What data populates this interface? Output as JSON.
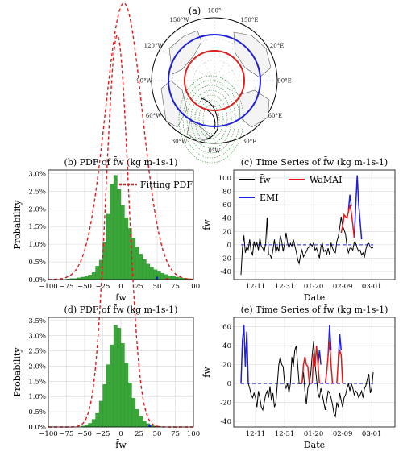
{
  "panel_a": {
    "label": "(a)",
    "lon_labels": [
      "180°",
      "150°E",
      "120°E",
      "90°E",
      "60°E",
      "30°E",
      "0°W",
      "30°W",
      "60°W",
      "90°W",
      "120°W",
      "150°W"
    ],
    "circle_colors": {
      "outer": "#1f1fdd",
      "inner": "#dd1f1f"
    },
    "icon": "polar-stereographic-map"
  },
  "colors": {
    "hist": "#3aa63a",
    "hist_edge": "#2d8f2d",
    "fit": "#e31a1c",
    "fw": "#000000",
    "wamai": "#e31a1c",
    "emi": "#1f1fdd",
    "zero": "#1f1fdd",
    "grid": "#d8d8d8"
  },
  "chart_data": [
    {
      "id": "b",
      "type": "bar",
      "title": "(b) PDF of f̄w (kg m-1s-1)",
      "xlabel": "f̄w",
      "ylabel": "Probability",
      "xlim": [
        -100,
        100
      ],
      "ylim": [
        0,
        0.031
      ],
      "xticks": [
        "−100",
        "−75",
        "−50",
        "−25",
        "0",
        "25",
        "50",
        "75",
        "100"
      ],
      "yticks": [
        "0.0%",
        "0.5%",
        "1.0%",
        "1.5%",
        "2.0%",
        "2.5%",
        "3.0%"
      ],
      "legend": [
        "Fitting PDF"
      ],
      "legend_position": "top-right",
      "grid": true,
      "bin_width": 5,
      "bins": [
        [
          -75,
          0.0002
        ],
        [
          -70,
          0.0003
        ],
        [
          -65,
          0.0003
        ],
        [
          -60,
          0.0005
        ],
        [
          -55,
          0.0007
        ],
        [
          -50,
          0.001
        ],
        [
          -45,
          0.0013
        ],
        [
          -40,
          0.002
        ],
        [
          -35,
          0.0038
        ],
        [
          -30,
          0.0055
        ],
        [
          -25,
          0.0105
        ],
        [
          -20,
          0.0185
        ],
        [
          -15,
          0.027
        ],
        [
          -10,
          0.0295
        ],
        [
          -5,
          0.0255
        ],
        [
          0,
          0.021
        ],
        [
          5,
          0.0175
        ],
        [
          10,
          0.0145
        ],
        [
          15,
          0.0118
        ],
        [
          20,
          0.0093
        ],
        [
          25,
          0.0072
        ],
        [
          30,
          0.0057
        ],
        [
          35,
          0.0044
        ],
        [
          40,
          0.0035
        ],
        [
          45,
          0.0028
        ],
        [
          50,
          0.0022
        ],
        [
          55,
          0.0018
        ],
        [
          60,
          0.0014
        ],
        [
          65,
          0.0011
        ],
        [
          70,
          0.0009
        ],
        [
          75,
          0.0007
        ],
        [
          80,
          0.0005
        ],
        [
          85,
          0.0004
        ],
        [
          90,
          0.0003
        ],
        [
          95,
          0.0002
        ]
      ],
      "fit": {
        "mean": 4,
        "sd": 25.5
      },
      "tail_marks": [
        [
          48,
          0.0008
        ],
        [
          62,
          0.0004
        ]
      ]
    },
    {
      "id": "c",
      "type": "line",
      "title": "(c) Time Series of f̄w (kg m-1s-1)",
      "xlabel": "Date",
      "ylabel": "f̄w",
      "xlim": [
        -25,
        86
      ],
      "ylim": [
        -52,
        112
      ],
      "xtick_values": [
        -20,
        0,
        20,
        40,
        60,
        80
      ],
      "xticks": [
        "12-11",
        "12-31",
        "01-20",
        "02-09",
        "03-01"
      ],
      "xtick_positions": [
        -10,
        10,
        30,
        50,
        70
      ],
      "yticks": [
        -40,
        -20,
        0,
        20,
        40,
        60,
        80,
        100
      ],
      "legend": [
        "f̄w",
        "WaMAI",
        "EMI"
      ],
      "legend_position": "top-left",
      "grid": true,
      "series": [
        {
          "name": "f̄w",
          "x": [
            -20,
            -19,
            -18,
            -17,
            -16,
            -15,
            -14,
            -13,
            -12,
            -11,
            -10,
            -9,
            -8,
            -7,
            -6,
            -5,
            -4,
            -3,
            -2,
            -1,
            0,
            1,
            2,
            3,
            4,
            5,
            6,
            7,
            8,
            9,
            10,
            11,
            12,
            13,
            14,
            15,
            16,
            17,
            18,
            19,
            20,
            21,
            22,
            23,
            24,
            25,
            26,
            27,
            28,
            29,
            30,
            31,
            32,
            33,
            34,
            35,
            36,
            37,
            38,
            39,
            40,
            41,
            42,
            43,
            44,
            45,
            46,
            47,
            48,
            49,
            50,
            51,
            52,
            53,
            54,
            55,
            56,
            57,
            58,
            59,
            60,
            61,
            62,
            63,
            64,
            65,
            66,
            67,
            68,
            69,
            70,
            71
          ],
          "y": [
            -45,
            -5,
            14,
            -12,
            -3,
            -7,
            8,
            -10,
            -15,
            5,
            -3,
            3,
            -8,
            10,
            -2,
            -5,
            -10,
            2,
            41,
            -15,
            -15,
            -20,
            -8,
            8,
            -12,
            -3,
            -10,
            14,
            5,
            -10,
            2,
            18,
            3,
            -5,
            2,
            -2,
            8,
            -1,
            -10,
            -22,
            -28,
            -15,
            -8,
            -18,
            -14,
            -10,
            -5,
            -3,
            1,
            -2,
            3,
            -8,
            -5,
            -12,
            -20,
            -3,
            2,
            -10,
            -8,
            -14,
            -5,
            -15,
            3,
            -5,
            -10,
            -12,
            5,
            12,
            26,
            42,
            28,
            22,
            16,
            -3,
            -12,
            -5,
            -5,
            -8,
            4,
            2,
            -5,
            -10,
            -8,
            -15,
            -12,
            -18,
            -6,
            1,
            2,
            -3,
            -5,
            -4
          ]
        },
        {
          "name": "WaMAI",
          "segments": [
            [
              [
                49,
                18
              ],
              [
                50,
                28
              ],
              [
                51,
                45
              ],
              [
                52,
                42
              ],
              [
                53,
                40
              ],
              [
                54,
                50
              ],
              [
                55,
                60
              ],
              [
                56,
                48
              ],
              [
                57,
                30
              ],
              [
                58,
                10
              ]
            ]
          ]
        },
        {
          "name": "EMI",
          "segments": [
            [
              [
                54,
                52
              ],
              [
                55,
                75
              ],
              [
                56,
                58
              ]
            ],
            [
              [
                58,
                10
              ],
              [
                59,
                60
              ],
              [
                60,
                104
              ],
              [
                61,
                60
              ],
              [
                62,
                35
              ],
              [
                63,
                8
              ]
            ]
          ]
        }
      ],
      "zero_line": 0
    },
    {
      "id": "d",
      "type": "bar",
      "title": "(d) PDF of f̄w (kg m-1s-1)",
      "xlabel": "f̄w",
      "ylabel": "Probability",
      "xlim": [
        -100,
        100
      ],
      "ylim": [
        0,
        0.036
      ],
      "xticks": [
        "−100",
        "−75",
        "−50",
        "−25",
        "0",
        "25",
        "50",
        "75",
        "100"
      ],
      "yticks": [
        "0.0%",
        "0.5%",
        "1.0%",
        "1.5%",
        "2.0%",
        "2.5%",
        "3.0%",
        "3.5%"
      ],
      "grid": true,
      "bin_width": 5,
      "bins": [
        [
          -55,
          0.0003
        ],
        [
          -50,
          0.0006
        ],
        [
          -45,
          0.0012
        ],
        [
          -40,
          0.0025
        ],
        [
          -35,
          0.0045
        ],
        [
          -30,
          0.0085
        ],
        [
          -25,
          0.014
        ],
        [
          -20,
          0.0205
        ],
        [
          -15,
          0.027
        ],
        [
          -10,
          0.0335
        ],
        [
          -5,
          0.0325
        ],
        [
          0,
          0.0275
        ],
        [
          5,
          0.021
        ],
        [
          10,
          0.0145
        ],
        [
          15,
          0.0095
        ],
        [
          20,
          0.0058
        ],
        [
          25,
          0.0035
        ],
        [
          30,
          0.002
        ],
        [
          35,
          0.0011
        ],
        [
          40,
          0.0006
        ],
        [
          45,
          0.0003
        ],
        [
          50,
          0.0002
        ]
      ],
      "fit": {
        "mean": -5,
        "sd": 15.5
      },
      "tail_marks": [
        [
          38,
          0.0006
        ],
        [
          45,
          0.0003
        ]
      ]
    },
    {
      "id": "e",
      "type": "line",
      "title": "(e) Time Series of f̄w (kg m-1s-1)",
      "xlabel": "Date",
      "ylabel": "f̄w",
      "xlim": [
        -25,
        86
      ],
      "ylim": [
        -46,
        70
      ],
      "xticks": [
        "12-11",
        "12-31",
        "01-20",
        "02-09",
        "03-01"
      ],
      "xtick_positions": [
        -10,
        10,
        30,
        50,
        70
      ],
      "yticks": [
        -40,
        -20,
        0,
        20,
        40,
        60
      ],
      "grid": true,
      "series": [
        {
          "name": "f̄w",
          "x": [
            -20,
            -19,
            -18,
            -17,
            -16,
            -15,
            -14,
            -13,
            -12,
            -11,
            -10,
            -9,
            -8,
            -7,
            -6,
            -5,
            -4,
            -3,
            -2,
            -1,
            0,
            1,
            2,
            3,
            4,
            5,
            6,
            7,
            8,
            9,
            10,
            11,
            12,
            13,
            14,
            15,
            16,
            17,
            18,
            19,
            20,
            21,
            22,
            23,
            24,
            25,
            26,
            27,
            28,
            29,
            30,
            31,
            32,
            33,
            34,
            35,
            36,
            37,
            38,
            39,
            40,
            41,
            42,
            43,
            44,
            45,
            46,
            47,
            48,
            49,
            50,
            51,
            52,
            53,
            54,
            55,
            56,
            57,
            58,
            59,
            60,
            61,
            62,
            63,
            64,
            65,
            66,
            67,
            68,
            69,
            70,
            71
          ],
          "y": [
            0,
            45,
            60,
            18,
            55,
            0,
            -5,
            -12,
            -15,
            -10,
            -15,
            -25,
            -8,
            -15,
            -25,
            -28,
            -20,
            -12,
            -8,
            -15,
            -3,
            -18,
            -10,
            -25,
            -20,
            0,
            20,
            28,
            20,
            18,
            0,
            -5,
            0,
            -10,
            0,
            28,
            18,
            35,
            40,
            20,
            0,
            0,
            0,
            12,
            -8,
            -22,
            -5,
            0,
            10,
            30,
            45,
            20,
            5,
            -10,
            -15,
            -5,
            -12,
            -20,
            -28,
            -18,
            -8,
            -10,
            -15,
            -22,
            -32,
            -35,
            -20,
            -25,
            -10,
            -18,
            -25,
            -15,
            -12,
            -5,
            0,
            -8,
            0,
            -5,
            -12,
            -8,
            -10,
            -15,
            -12,
            -8,
            -15,
            -5,
            -2,
            5,
            10,
            -10,
            -5,
            12
          ]
        },
        {
          "name": "WaMAI",
          "segments": [
            [
              [
                22,
                0
              ],
              [
                23,
                20
              ],
              [
                24,
                28
              ],
              [
                25,
                20
              ],
              [
                26,
                18
              ],
              [
                27,
                0
              ]
            ],
            [
              [
                29,
                0
              ],
              [
                30,
                32
              ],
              [
                31,
                18
              ],
              [
                32,
                40
              ],
              [
                33,
                20
              ],
              [
                34,
                0
              ]
            ],
            [
              [
                38,
                0
              ],
              [
                39,
                12
              ],
              [
                40,
                30
              ],
              [
                41,
                45
              ],
              [
                42,
                20
              ],
              [
                43,
                0
              ]
            ],
            [
              [
                46,
                0
              ],
              [
                47,
                25
              ],
              [
                48,
                35
              ],
              [
                49,
                30
              ],
              [
                50,
                0
              ]
            ]
          ]
        },
        {
          "name": "EMI",
          "segments": [
            [
              [
                -20,
                0
              ],
              [
                -19,
                45
              ],
              [
                -18,
                62
              ],
              [
                -17,
                18
              ],
              [
                -16,
                55
              ],
              [
                -15,
                0
              ]
            ],
            [
              [
                33,
                20
              ],
              [
                34,
                35
              ],
              [
                35,
                20
              ]
            ],
            [
              [
                40,
                30
              ],
              [
                41,
                62
              ],
              [
                42,
                35
              ]
            ],
            [
              [
                47,
                25
              ],
              [
                48,
                52
              ],
              [
                49,
                35
              ]
            ]
          ]
        }
      ],
      "zero_line": 0
    }
  ]
}
